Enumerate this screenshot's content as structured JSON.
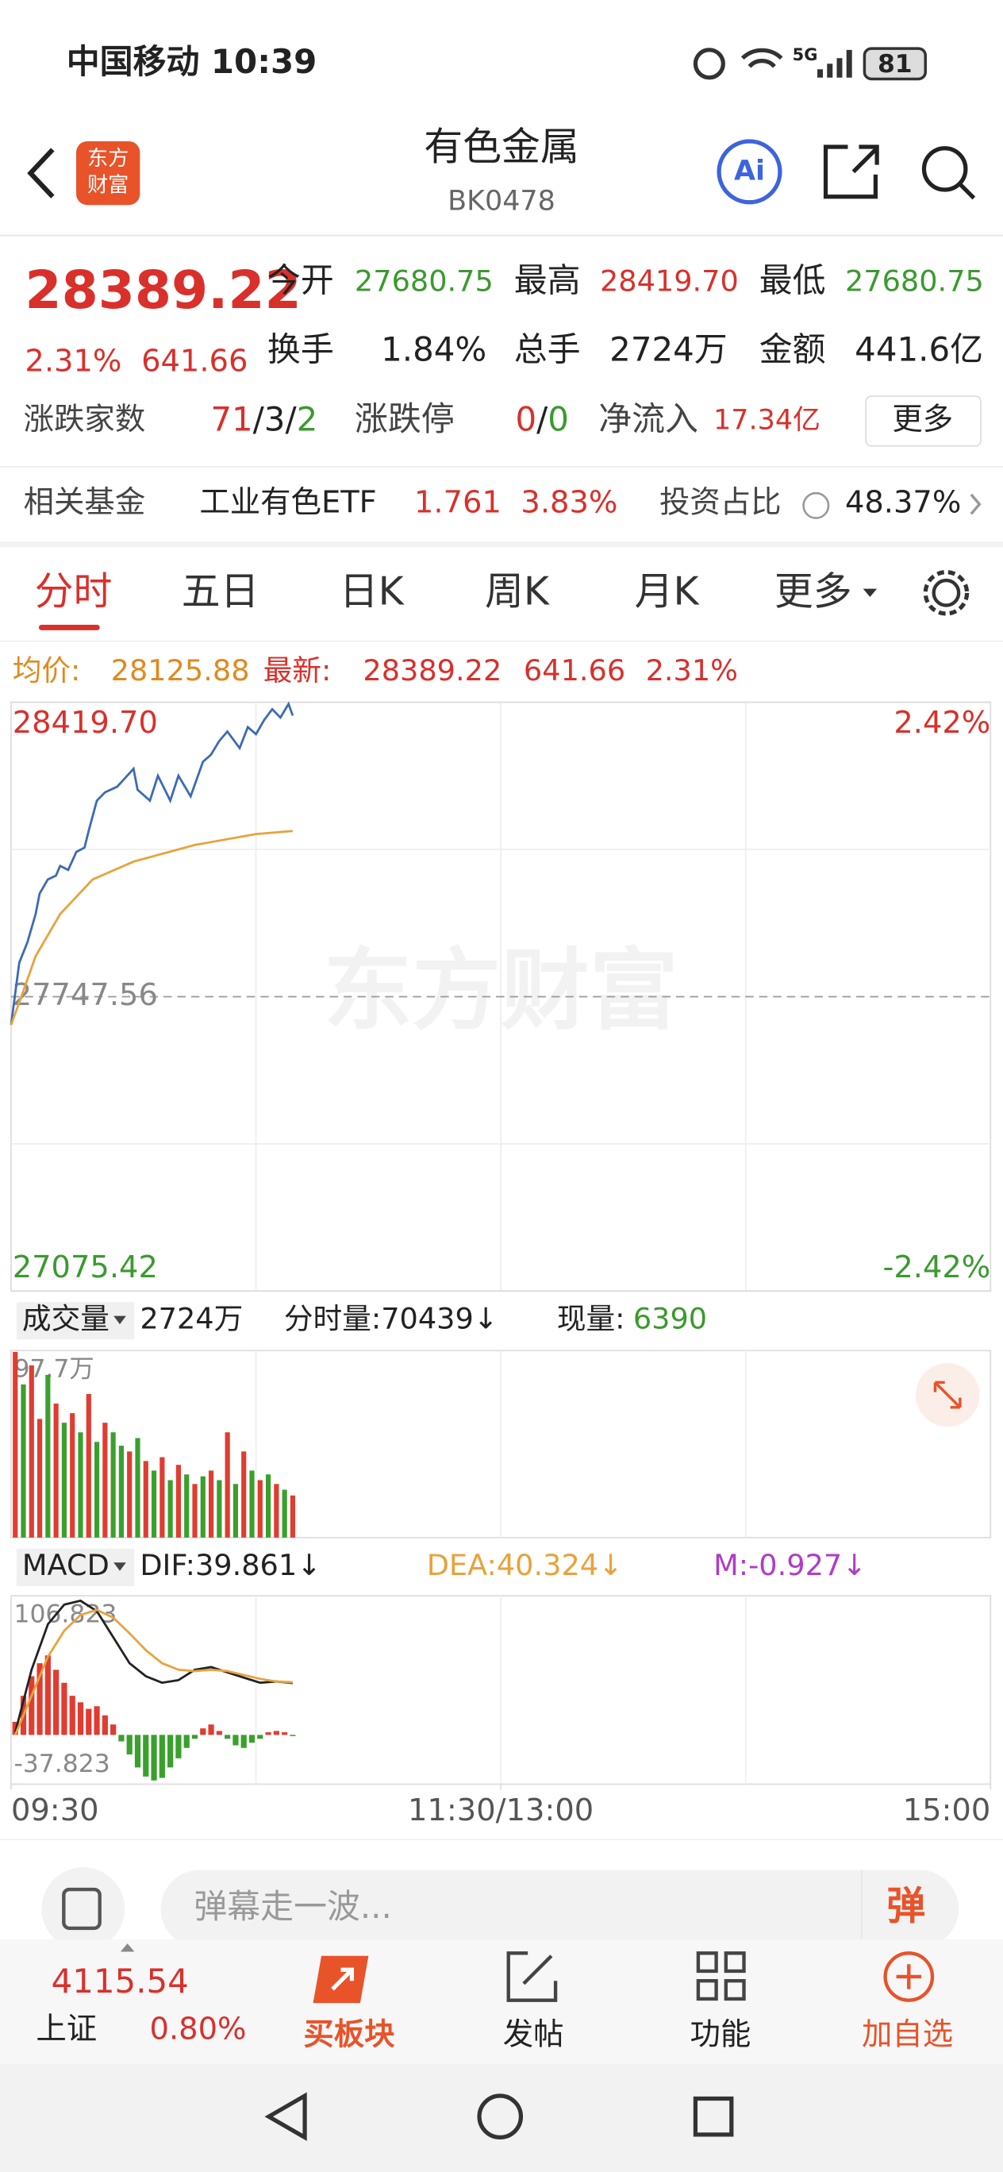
{
  "status_bar": {
    "carrier_time": "中国移动 10:39",
    "network": "5G",
    "battery": "81"
  },
  "header": {
    "title": "有色金属",
    "code": "BK0478",
    "logo": [
      "东方",
      "财富"
    ],
    "ai": "Ai"
  },
  "quote": {
    "price": "28389.22",
    "change_pct": "2.31%",
    "change": "641.66",
    "stats": [
      {
        "label": "今开",
        "value": "27680.75"
      },
      {
        "label": "最高",
        "value": "28419.70"
      },
      {
        "label": "最低",
        "value": "27680.75"
      },
      {
        "label": "换手",
        "value": "1.84%"
      },
      {
        "label": "总手",
        "value": "2724万"
      },
      {
        "label": "金额",
        "value": "441.6亿"
      }
    ],
    "breadth_label": "涨跌家数",
    "breadth": [
      "71",
      "/",
      "3",
      "/",
      "2"
    ],
    "limit_label": "涨跌停",
    "limit": [
      "0",
      "/",
      "0"
    ],
    "inflow_label": "净流入",
    "inflow": "17.34亿",
    "more": "更多"
  },
  "fund": {
    "label": "相关基金",
    "name": "工业有色ETF",
    "price": "1.761",
    "change": "3.83%",
    "ratio_label": "投资占比",
    "ratio": "48.37%"
  },
  "tabs": [
    "分时",
    "五日",
    "日K",
    "周K",
    "月K",
    "更多"
  ],
  "info": {
    "avg_label": "均价:",
    "avg": "28125.88",
    "last_label": "最新:",
    "last": "28389.22",
    "change": "641.66",
    "change_pct": "2.31%"
  },
  "chart_data": [
    {
      "type": "line",
      "watermark": "东方财富",
      "xlim": [
        0,
        240
      ],
      "ylim": [
        27075.42,
        28419.7
      ],
      "yticks": [
        27075.42,
        27747.56,
        {
          "value": 28419.7,
          "label": "28419.70"
        }
      ],
      "y2lim": [
        -2.42,
        2.42
      ],
      "y2ticks": [
        {
          "value": -2.42,
          "label": "-2.42%"
        },
        {
          "value": 2.42,
          "label": "2.42%"
        }
      ],
      "series": [
        {
          "color": "#3b6bb5",
          "x": [
            0,
            2,
            4,
            6,
            7,
            9,
            11,
            12,
            14,
            16,
            18,
            19,
            21,
            23,
            26,
            30,
            31,
            34,
            36,
            39,
            41,
            44,
            47,
            49,
            51,
            53,
            56,
            58,
            60,
            62,
            64,
            66,
            68,
            69
          ],
          "values": [
            27683,
            27825,
            27872,
            27936,
            27983,
            28015,
            28024,
            28046,
            28037,
            28078,
            28088,
            28126,
            28195,
            28214,
            28227,
            28268,
            28220,
            28195,
            28252,
            28195,
            28252,
            28205,
            28284,
            28300,
            28331,
            28353,
            28315,
            28363,
            28347,
            28379,
            28404,
            28385,
            28416,
            28389.22
          ]
        },
        {
          "color": "#e9a23b",
          "x": [
            0,
            3,
            6,
            12,
            20,
            30,
            45,
            60,
            69
          ],
          "values": [
            27683,
            27760,
            27840,
            27936,
            28015,
            28056,
            28094,
            28119,
            28125.88
          ]
        }
      ]
    },
    {
      "type": "bar",
      "header": [
        "成交量",
        "2724万",
        "分时量:70439↓",
        "现量:",
        "6390"
      ],
      "xlim": [
        0,
        240
      ],
      "ylim": [
        0,
        97.7
      ],
      "yticks": [
        {
          "value": 97.7,
          "label": "97.7万"
        }
      ],
      "x": [
        0,
        2,
        4,
        6,
        8,
        10,
        12,
        14,
        16,
        18,
        20,
        22,
        24,
        26,
        28,
        30,
        32,
        34,
        36,
        38,
        40,
        42,
        44,
        46,
        48,
        50,
        52,
        54,
        56,
        58,
        60,
        62,
        64,
        66,
        68
      ],
      "values": [
        97,
        80,
        90,
        62,
        85,
        70,
        60,
        65,
        55,
        75,
        50,
        60,
        55,
        48,
        45,
        52,
        40,
        35,
        42,
        30,
        38,
        33,
        28,
        32,
        35,
        30,
        55,
        28,
        45,
        35,
        30,
        33,
        28,
        25,
        22
      ],
      "colors": [
        "#e03c31",
        "#3aa02c",
        "#e03c31",
        "#e03c31",
        "#3aa02c",
        "#e03c31",
        "#3aa02c",
        "#e03c31",
        "#3aa02c",
        "#e03c31",
        "#3aa02c",
        "#e03c31",
        "#3aa02c",
        "#3aa02c",
        "#e03c31",
        "#3aa02c",
        "#e03c31",
        "#3aa02c",
        "#e03c31",
        "#3aa02c",
        "#e03c31",
        "#3aa02c",
        "#e03c31",
        "#3aa02c",
        "#e03c31",
        "#3aa02c",
        "#e03c31",
        "#3aa02c",
        "#e03c31",
        "#3aa02c",
        "#e03c31",
        "#3aa02c",
        "#e03c31",
        "#3aa02c",
        "#e03c31"
      ]
    },
    {
      "type": "macd",
      "header": [
        "MACD",
        "DIF:39.861↓",
        "DEA:40.324↓",
        "M:-0.927↓"
      ],
      "xlim": [
        0,
        240
      ],
      "ylim": [
        -37.823,
        106.823
      ],
      "yticks": [
        -37.823,
        106.823
      ],
      "xticks": [
        {
          "value": 0,
          "label": "09:30"
        },
        {
          "value": 120,
          "label": "11:30/13:00"
        },
        {
          "value": 240,
          "label": "15:00"
        }
      ],
      "bars": {
        "x": [
          0,
          2,
          4,
          6,
          8,
          10,
          12,
          14,
          16,
          18,
          20,
          22,
          24,
          26,
          28,
          30,
          32,
          34,
          36,
          38,
          40,
          42,
          44,
          46,
          48,
          50,
          52,
          54,
          56,
          58,
          60,
          62,
          64,
          66,
          68
        ],
        "values": [
          10,
          30,
          45,
          55,
          61,
          50,
          40,
          30,
          25,
          20,
          22,
          15,
          8,
          -5,
          -15,
          -25,
          -32,
          -35,
          -33,
          -25,
          -18,
          -10,
          -3,
          5,
          8,
          3,
          -3,
          -8,
          -10,
          -6,
          -3,
          2,
          3,
          2,
          -0.927
        ],
        "colors": [
          "#e03c31",
          "#3aa02c"
        ]
      },
      "series": [
        {
          "color": "#222222",
          "x": [
            0,
            4,
            8,
            12,
            16,
            20,
            24,
            28,
            32,
            36,
            40,
            44,
            48,
            52,
            56,
            60,
            64,
            68
          ],
          "values": [
            2,
            50,
            85,
            100,
            103,
            95,
            75,
            55,
            45,
            40,
            42,
            50,
            52,
            48,
            44,
            40,
            41,
            39.861
          ]
        },
        {
          "color": "#e9a23b",
          "x": [
            0,
            4,
            8,
            12,
            16,
            20,
            24,
            28,
            32,
            36,
            40,
            44,
            48,
            52,
            56,
            60,
            64,
            68
          ],
          "values": [
            0,
            30,
            60,
            80,
            92,
            96,
            90,
            78,
            65,
            55,
            50,
            49,
            50,
            49,
            46,
            43,
            41,
            40.324
          ]
        }
      ]
    }
  ],
  "comment": {
    "placeholder": "弹幕走一波...",
    "button": "弹"
  },
  "nav": {
    "index_value": "4115.54",
    "index_name": "上证",
    "index_change": "0.80%",
    "items": [
      "买板块",
      "发帖",
      "功能",
      "加自选"
    ]
  }
}
